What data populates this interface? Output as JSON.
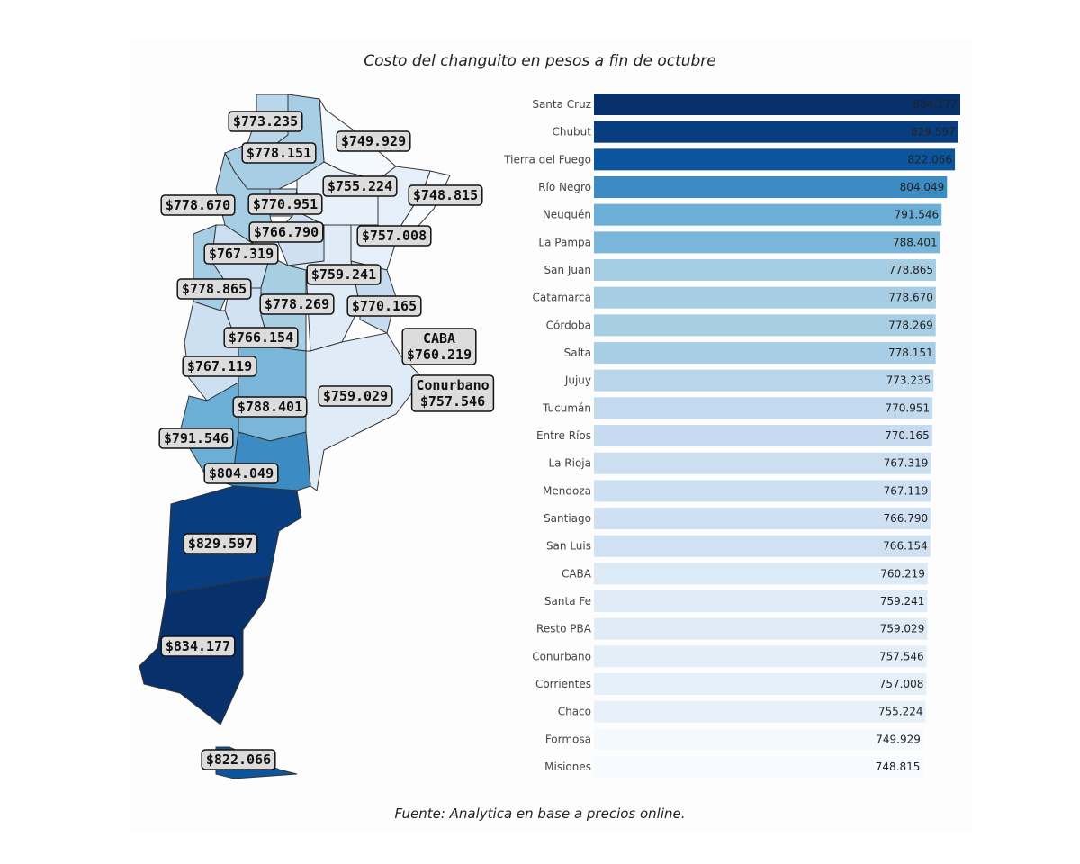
{
  "title": "Costo del changuito en pesos a fin de octubre",
  "source": "Fuente: Analytica en base a precios online.",
  "chart_data": [
    {
      "type": "map",
      "colorscale": "Blues",
      "colors": {
        "min": "#f7fbff",
        "max": "#08306b"
      },
      "regions": [
        {
          "name": "Jujuy",
          "label": "$773.235",
          "value": 773235
        },
        {
          "name": "Formosa",
          "label": "$749.929",
          "value": 749929
        },
        {
          "name": "Salta",
          "label": "$778.151",
          "value": 778151
        },
        {
          "name": "Chaco",
          "label": "$755.224",
          "value": 755224
        },
        {
          "name": "Misiones",
          "label": "$748.815",
          "value": 748815
        },
        {
          "name": "Catamarca",
          "label": "$778.670",
          "value": 778670
        },
        {
          "name": "Tucumán",
          "label": "$770.951",
          "value": 770951
        },
        {
          "name": "Santiago",
          "label": "$766.790",
          "value": 766790
        },
        {
          "name": "Corrientes",
          "label": "$757.008",
          "value": 757008
        },
        {
          "name": "La Rioja",
          "label": "$767.319",
          "value": 767319
        },
        {
          "name": "Santa Fe",
          "label": "$759.241",
          "value": 759241
        },
        {
          "name": "San Juan",
          "label": "$778.865",
          "value": 778865
        },
        {
          "name": "Córdoba",
          "label": "$778.269",
          "value": 778269
        },
        {
          "name": "Entre Ríos",
          "label": "$770.165",
          "value": 770165
        },
        {
          "name": "San Luis",
          "label": "$766.154",
          "value": 766154
        },
        {
          "name": "CABA",
          "label": "CABA\n$760.219",
          "value": 760219
        },
        {
          "name": "Mendoza",
          "label": "$767.119",
          "value": 767119
        },
        {
          "name": "Conurbano",
          "label": "Conurbano\n$757.546",
          "value": 757546
        },
        {
          "name": "Resto PBA",
          "label": "$759.029",
          "value": 759029
        },
        {
          "name": "La Pampa",
          "label": "$788.401",
          "value": 788401
        },
        {
          "name": "Neuquén",
          "label": "$791.546",
          "value": 791546
        },
        {
          "name": "Río Negro",
          "label": "$804.049",
          "value": 804049
        },
        {
          "name": "Chubut",
          "label": "$829.597",
          "value": 829597
        },
        {
          "name": "Santa Cruz",
          "label": "$834.177",
          "value": 834177
        },
        {
          "name": "Tierra del Fuego",
          "label": "$822.066",
          "value": 822066
        }
      ]
    },
    {
      "type": "bar",
      "orientation": "horizontal",
      "colorscale": "Blues",
      "categories": [
        "Santa Cruz",
        "Chubut",
        "Tierra del Fuego",
        "Río Negro",
        "Neuquén",
        "La Pampa",
        "San Juan",
        "Catamarca",
        "Córdoba",
        "Salta",
        "Jujuy",
        "Tucumán",
        "Entre Ríos",
        "La Rioja",
        "Mendoza",
        "Santiago",
        "San Luis",
        "CABA",
        "Santa Fe",
        "Resto PBA",
        "Conurbano",
        "Corrientes",
        "Chaco",
        "Formosa",
        "Misiones"
      ],
      "values": [
        834177,
        829597,
        822066,
        804049,
        791546,
        788401,
        778865,
        778670,
        778269,
        778151,
        773235,
        770951,
        770165,
        767319,
        767119,
        766790,
        766154,
        760219,
        759241,
        759029,
        757546,
        757008,
        755224,
        749929,
        748815
      ],
      "value_labels": [
        "834.177",
        "829.597",
        "822.066",
        "804.049",
        "791.546",
        "788.401",
        "778.865",
        "778.670",
        "778.269",
        "778.151",
        "773.235",
        "770.951",
        "770.165",
        "767.319",
        "767.119",
        "766.790",
        "766.154",
        "760.219",
        "759.241",
        "759.029",
        "757.546",
        "757.008",
        "755.224",
        "749.929",
        "748.815"
      ],
      "xlim": [
        0,
        834177
      ],
      "grid": false
    }
  ]
}
